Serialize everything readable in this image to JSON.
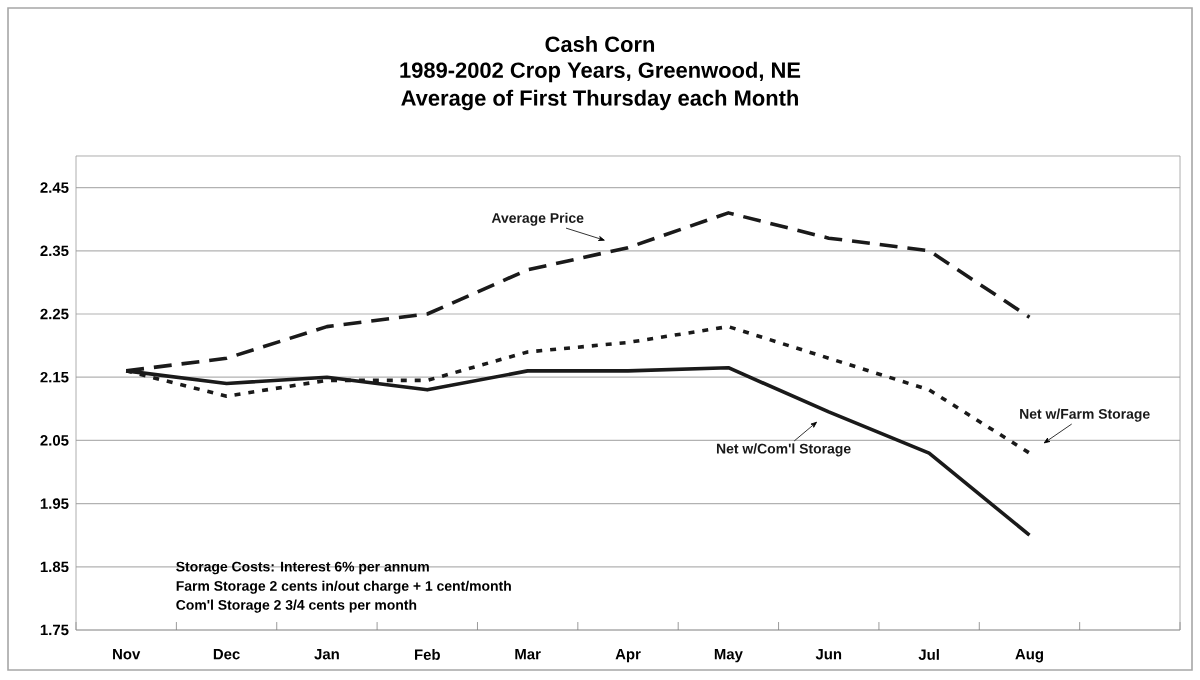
{
  "chart_data": {
    "type": "line",
    "title": "Cash Corn",
    "subtitle": "1989-2002 Crop Years, Greenwood, NE",
    "categories": [
      "Nov",
      "Dec",
      "Jan",
      "Feb",
      "Mar",
      "Apr",
      "May",
      "Jun",
      "Jul",
      "Aug",
      null
    ],
    "series": [
      {
        "name": "Average Price",
        "color": "#1a1a1a",
        "line_style": "dashed",
        "values": [
          2.16,
          2.18,
          2.23,
          2.25,
          2.32,
          2.355,
          2.41,
          2.37,
          2.35,
          2.245,
          null
        ]
      },
      {
        "name": "Net w/Farm Storage",
        "color": "#1a1a1a",
        "line_style": "dotted",
        "values": [
          2.16,
          2.12,
          2.145,
          2.145,
          2.19,
          2.205,
          2.23,
          2.18,
          2.13,
          2.03,
          null
        ]
      },
      {
        "name": "Net w/Com'l Storage",
        "color": "#1a1a1a",
        "line_style": "solid",
        "values": [
          2.16,
          2.14,
          2.15,
          2.13,
          2.16,
          2.16,
          2.165,
          2.095,
          2.03,
          1.9,
          null
        ]
      }
    ],
    "ylim": [
      1.75,
      2.5
    ],
    "yticks": [
      1.75,
      1.85,
      1.95,
      2.05,
      2.15,
      2.25,
      2.35,
      2.45
    ],
    "grid": "y",
    "legend": false,
    "marker": "none",
    "annotations": [
      "Average of First Thursday each Month",
      "Storage Costs: Interest 6% per annum",
      "Farm Storage 2 cents in/out charge + 1 cent/month",
      "Com'l Storage 2 3/4 cents per month"
    ]
  }
}
